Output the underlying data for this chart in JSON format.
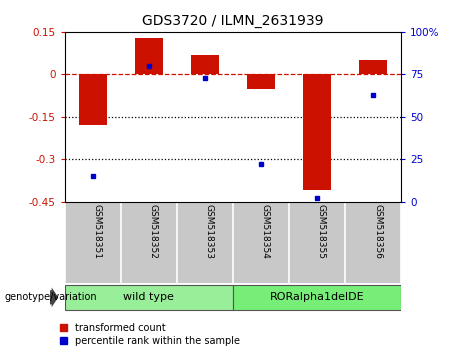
{
  "title": "GDS3720 / ILMN_2631939",
  "samples": [
    "GSM518351",
    "GSM518352",
    "GSM518353",
    "GSM518354",
    "GSM518355",
    "GSM518356"
  ],
  "red_values": [
    -0.18,
    0.13,
    0.07,
    -0.05,
    -0.41,
    0.05
  ],
  "blue_pct": [
    15,
    80,
    73,
    22,
    2,
    63
  ],
  "ylim_left": [
    -0.45,
    0.15
  ],
  "ylim_right": [
    0,
    100
  ],
  "yticks_left": [
    -0.45,
    -0.3,
    -0.15,
    0.0,
    0.15
  ],
  "yticks_right": [
    0,
    25,
    50,
    75,
    100
  ],
  "hline_dashed": 0.0,
  "hlines_dotted": [
    -0.15,
    -0.3
  ],
  "red_color": "#cc1100",
  "blue_color": "#0000cc",
  "bar_width": 0.5,
  "group1_label": "wild type",
  "group2_label": "RORalpha1delDE",
  "group1_color": "#99ee99",
  "group2_color": "#77ee77",
  "group_label": "genotype/variation",
  "legend_red": "transformed count",
  "legend_blue": "percentile rank within the sample",
  "plot_bg": "#ffffff",
  "tick_area_color": "#c8c8c8",
  "title_fontsize": 10,
  "tick_fontsize": 7.5,
  "sample_fontsize": 6.5,
  "legend_fontsize": 7,
  "group_fontsize": 8
}
